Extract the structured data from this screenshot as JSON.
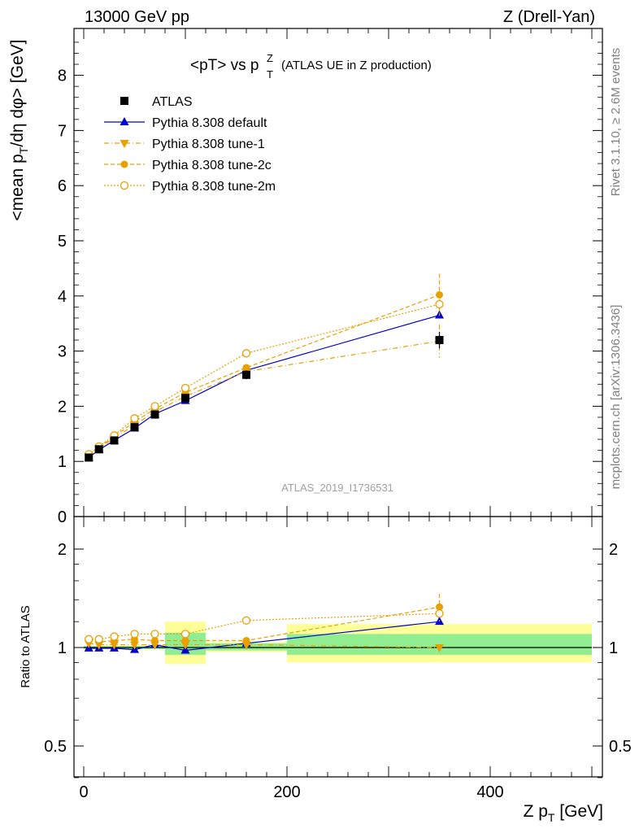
{
  "header": {
    "left": "13000 GeV pp",
    "right": "Z (Drell-Yan)"
  },
  "title": {
    "main": "<pT> vs p",
    "sup": "Z",
    "sub": "T",
    "note": "(ATLAS UE in Z production)"
  },
  "side_text": {
    "rivet": "Rivet 3.1.10, ≥ 2.6M events",
    "mcplots": "mcplots.cern.ch [arXiv:1306.3436]"
  },
  "analysis_label": "ATLAS_2019_I1736531",
  "colors": {
    "data": "#000000",
    "default": "#0000cc",
    "tunes": "#e8a000",
    "band_inner": "#90ee90",
    "band_outer": "#ffff99",
    "watermark": "#a0a0a0"
  },
  "chart_data": [
    {
      "type": "scatter",
      "panel": "main",
      "ylabel": "<mean p_T/dη dφ> [GeV]",
      "xlim": [
        0,
        500
      ],
      "ylim": [
        0,
        8.8
      ],
      "yticks": [
        0,
        1,
        2,
        3,
        4,
        5,
        6,
        7,
        8
      ],
      "x": [
        5,
        15,
        30,
        50,
        70,
        100,
        160,
        350
      ],
      "series": [
        {
          "name": "ATLAS",
          "values": [
            1.07,
            1.22,
            1.38,
            1.62,
            1.85,
            2.15,
            2.57,
            3.2
          ]
        },
        {
          "name": "Pythia 8.308 default",
          "values": [
            1.07,
            1.21,
            1.38,
            1.6,
            1.86,
            2.1,
            2.65,
            3.65
          ]
        },
        {
          "name": "Pythia 8.308 tune-1",
          "values": [
            1.1,
            1.24,
            1.42,
            1.66,
            1.9,
            2.18,
            2.63,
            3.18
          ]
        },
        {
          "name": "Pythia 8.308 tune-2c",
          "values": [
            1.12,
            1.26,
            1.45,
            1.72,
            1.95,
            2.25,
            2.7,
            4.02
          ]
        },
        {
          "name": "Pythia 8.308 tune-2m",
          "values": [
            1.13,
            1.27,
            1.47,
            1.78,
            2.0,
            2.33,
            2.96,
            3.85
          ]
        }
      ],
      "errors": {
        "ATLAS": [
          0.02,
          0.02,
          0.03,
          0.04,
          0.04,
          0.06,
          0.08,
          0.15
        ],
        "Pythia 8.308 tune-1": [
          0,
          0,
          0,
          0,
          0,
          0,
          0,
          0.3
        ],
        "Pythia 8.308 tune-2c": [
          0,
          0,
          0,
          0,
          0,
          0,
          0,
          0.38
        ],
        "Pythia 8.308 tune-2m": [
          0,
          0,
          0,
          0,
          0,
          0,
          0,
          0.15
        ]
      }
    },
    {
      "type": "scatter",
      "panel": "ratio",
      "xlabel": "Z p_T [GeV]",
      "ylabel": "Ratio to ATLAS",
      "xlim": [
        0,
        500
      ],
      "ylim": [
        0.35,
        2.25
      ],
      "yticks": [
        0.5,
        1,
        2
      ],
      "xticks": [
        0,
        200,
        400
      ],
      "x": [
        5,
        15,
        30,
        50,
        70,
        100,
        160,
        350
      ],
      "series": [
        {
          "name": "Pythia 8.308 default",
          "values": [
            0.995,
            0.995,
            0.995,
            0.985,
            1.02,
            0.98,
            1.03,
            1.2
          ]
        },
        {
          "name": "Pythia 8.308 tune-1",
          "values": [
            1.03,
            1.02,
            1.02,
            1.02,
            1.02,
            1.02,
            1.02,
            1.0
          ]
        },
        {
          "name": "Pythia 8.308 tune-2c",
          "values": [
            1.05,
            1.04,
            1.05,
            1.06,
            1.05,
            1.05,
            1.05,
            1.33
          ]
        },
        {
          "name": "Pythia 8.308 tune-2m",
          "values": [
            1.06,
            1.06,
            1.08,
            1.1,
            1.1,
            1.1,
            1.21,
            1.27
          ]
        }
      ],
      "ratio_errors": {
        "Pythia 8.308 tune-2c": [
          0,
          0,
          0,
          0,
          0,
          0,
          0,
          0.13
        ]
      },
      "bands": [
        {
          "xmin": 0,
          "xmax": 80,
          "inner": [
            0.99,
            1.01
          ],
          "outer": [
            0.985,
            1.015
          ]
        },
        {
          "xmin": 80,
          "xmax": 120,
          "inner": [
            0.95,
            1.11
          ],
          "outer": [
            0.89,
            1.2
          ]
        },
        {
          "xmin": 120,
          "xmax": 200,
          "inner": [
            0.98,
            1.03
          ],
          "outer": [
            0.97,
            1.04
          ]
        },
        {
          "xmin": 200,
          "xmax": 500,
          "inner": [
            0.95,
            1.1
          ],
          "outer": [
            0.9,
            1.18
          ]
        }
      ]
    }
  ]
}
